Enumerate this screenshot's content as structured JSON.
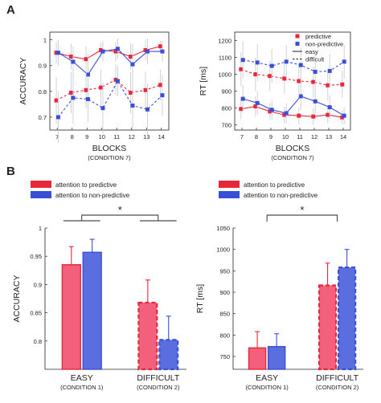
{
  "panel_labels": [
    "A",
    "B"
  ],
  "colors": {
    "predictive": "#e8283a",
    "nonpredictive": "#3a4fd8",
    "bar_pred_fill": "#f2607c",
    "bar_non_fill": "#5a6ee0",
    "error": "#c9ccd6"
  },
  "chart_data": [
    {
      "id": "acc_blocks",
      "type": "line",
      "ylabel": "ACCURACY",
      "xlabel": "BLOCKS",
      "xsublabel": "(CONDITION 7)",
      "x": [
        7,
        8,
        9,
        10,
        11,
        12,
        13,
        14
      ],
      "xticks": [
        "7",
        "8",
        "9",
        "10",
        "11",
        "12",
        "13",
        "14"
      ],
      "ylim": [
        0.65,
        1.03
      ],
      "yticks": [
        0.7,
        0.8,
        0.9,
        1.0
      ],
      "ytick_labels": [
        "0.7",
        "0.8",
        "0.9",
        "1"
      ],
      "series": [
        {
          "condition": "pred",
          "style": "solid",
          "values": [
            0.95,
            0.935,
            0.925,
            0.96,
            0.955,
            0.935,
            0.96,
            0.975
          ],
          "err": [
            0.04,
            0.05,
            0.05,
            0.03,
            0.04,
            0.05,
            0.04,
            0.02
          ]
        },
        {
          "condition": "non",
          "style": "solid",
          "values": [
            0.95,
            0.915,
            0.865,
            0.955,
            0.965,
            0.905,
            0.955,
            0.955
          ],
          "err": [
            0.05,
            0.06,
            0.08,
            0.04,
            0.04,
            0.08,
            0.05,
            0.04
          ]
        },
        {
          "condition": "pred",
          "style": "dashed",
          "values": [
            0.765,
            0.795,
            0.805,
            0.815,
            0.845,
            0.795,
            0.805,
            0.825
          ],
          "err": [
            0.09,
            0.08,
            0.07,
            0.07,
            0.06,
            0.08,
            0.07,
            0.06
          ]
        },
        {
          "condition": "non",
          "style": "dashed",
          "values": [
            0.7,
            0.775,
            0.77,
            0.735,
            0.84,
            0.745,
            0.73,
            0.785
          ],
          "err": [
            0.1,
            0.1,
            0.09,
            0.1,
            0.06,
            0.09,
            0.1,
            0.08
          ]
        }
      ]
    },
    {
      "id": "rt_blocks",
      "type": "line",
      "ylabel": "RT [ms]",
      "xlabel": "BLOCKS",
      "xsublabel": "(CONDITION 7)",
      "x": [
        7,
        8,
        9,
        10,
        11,
        12,
        13,
        14
      ],
      "xticks": [
        "7",
        "8",
        "9",
        "10",
        "11",
        "12",
        "13",
        "14"
      ],
      "ylim": [
        670,
        1250
      ],
      "yticks": [
        700,
        800,
        900,
        1000,
        1100,
        1200
      ],
      "ytick_labels": [
        "700",
        "800",
        "900",
        "1000",
        "1100",
        "1200"
      ],
      "legend": [
        {
          "label": "predictive",
          "kind": "marker",
          "condition": "pred"
        },
        {
          "label": "non-predictive",
          "kind": "marker",
          "condition": "non"
        },
        {
          "label": "easy",
          "kind": "line",
          "style": "solid"
        },
        {
          "label": "difficult",
          "kind": "line",
          "style": "dashed"
        }
      ],
      "series": [
        {
          "condition": "pred",
          "style": "solid",
          "values": [
            795,
            810,
            780,
            760,
            755,
            750,
            760,
            745
          ],
          "err": [
            60,
            60,
            50,
            50,
            50,
            50,
            50,
            40
          ]
        },
        {
          "condition": "non",
          "style": "solid",
          "values": [
            855,
            830,
            790,
            770,
            870,
            840,
            805,
            755
          ],
          "err": [
            80,
            70,
            60,
            60,
            80,
            70,
            70,
            50
          ]
        },
        {
          "condition": "pred",
          "style": "dashed",
          "values": [
            1030,
            1000,
            990,
            975,
            960,
            955,
            935,
            940
          ],
          "err": [
            100,
            100,
            90,
            90,
            90,
            90,
            90,
            80
          ]
        },
        {
          "condition": "non",
          "style": "dashed",
          "values": [
            1085,
            1070,
            1050,
            1075,
            1055,
            1015,
            1020,
            1075
          ],
          "err": [
            110,
            110,
            100,
            100,
            100,
            110,
            100,
            100
          ]
        }
      ]
    },
    {
      "id": "acc_bars",
      "type": "bar",
      "ylabel": "ACCURACY",
      "categories": [
        "EASY",
        "DIFFICULT"
      ],
      "category_sublabels": [
        "(CONDITION 1)",
        "(CONDITION 2)"
      ],
      "ylim": [
        0.75,
        1.0
      ],
      "yticks": [
        0.8,
        0.85,
        0.9,
        0.95,
        1.0
      ],
      "ytick_labels": [
        "0.8",
        "0.85",
        "0.9",
        "0.95",
        "1"
      ],
      "legend": [
        "attention to predictive",
        "attention to non-predictive"
      ],
      "significance": "*",
      "series": [
        {
          "condition": "pred",
          "values": [
            0.935,
            0.868
          ],
          "err": [
            0.032,
            0.04
          ]
        },
        {
          "condition": "non",
          "values": [
            0.957,
            0.802
          ],
          "err": [
            0.023,
            0.042
          ]
        }
      ]
    },
    {
      "id": "rt_bars",
      "type": "bar",
      "ylabel": "RT [ms]",
      "categories": [
        "EASY",
        "DIFFICULT"
      ],
      "category_sublabels": [
        "(CONDITION 1)",
        "(CONDITION 2)"
      ],
      "ylim": [
        720,
        1050
      ],
      "yticks": [
        750,
        800,
        850,
        900,
        950,
        1000,
        1050
      ],
      "ytick_labels": [
        "750",
        "800",
        "850",
        "900",
        "950",
        "1000",
        "1050"
      ],
      "legend": [
        "attention to predictive",
        "attention to non-predictive"
      ],
      "significance": "*",
      "series": [
        {
          "condition": "pred",
          "values": [
            770,
            916
          ],
          "err": [
            38,
            52
          ]
        },
        {
          "condition": "non",
          "values": [
            773,
            958
          ],
          "err": [
            30,
            42
          ]
        }
      ]
    }
  ]
}
